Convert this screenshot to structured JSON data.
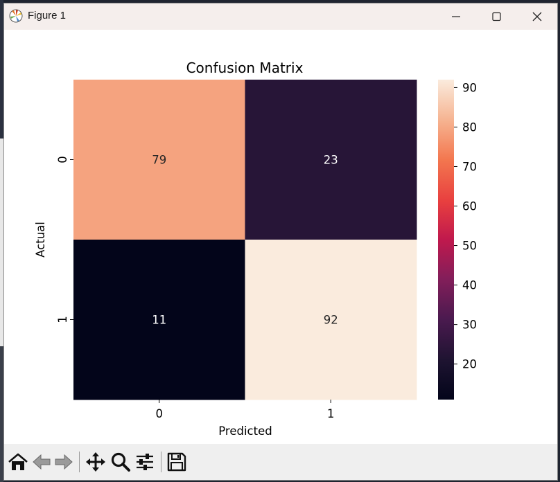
{
  "window": {
    "title": "Figure 1"
  },
  "chart_data": {
    "type": "heatmap",
    "title": "Confusion Matrix",
    "xlabel": "Predicted",
    "ylabel": "Actual",
    "x_categories": [
      "0",
      "1"
    ],
    "y_categories": [
      "0",
      "1"
    ],
    "values": [
      [
        79,
        23
      ],
      [
        11,
        92
      ]
    ],
    "colormap": "rocket",
    "colorbar": {
      "ticks": [
        20,
        30,
        40,
        50,
        60,
        70,
        80,
        90
      ],
      "range": [
        11,
        92
      ]
    }
  },
  "toolbar": {
    "tools": [
      {
        "name": "home-icon"
      },
      {
        "name": "back-arrow-icon"
      },
      {
        "name": "forward-arrow-icon"
      },
      {
        "name": "pan-move-icon"
      },
      {
        "name": "zoom-magnifier-icon"
      },
      {
        "name": "configure-subplots-icon"
      },
      {
        "name": "save-floppy-icon"
      }
    ]
  }
}
